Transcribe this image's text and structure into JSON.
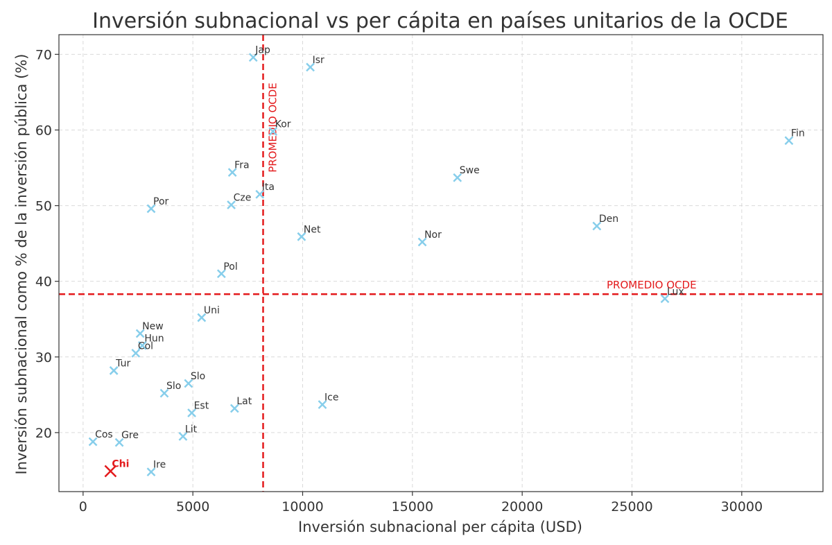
{
  "chart_data": {
    "type": "scatter",
    "title": "Inversión subnacional vs per cápita en países unitarios de la OCDE",
    "xlabel": "Inversión subnacional per cápita (USD)",
    "ylabel": "Inversión subnacional como % de la inversión pública (%)",
    "xlim": [
      -1100,
      33700
    ],
    "ylim": [
      12.2,
      72.6
    ],
    "xticks": [
      0,
      5000,
      10000,
      15000,
      20000,
      25000,
      30000
    ],
    "yticks": [
      20,
      30,
      40,
      50,
      60,
      70
    ],
    "grid": true,
    "marker_color": "#87CEEB",
    "highlight_color": "#e31a1c",
    "points": [
      {
        "label": "Jap",
        "x": 7750,
        "y": 69.6
      },
      {
        "label": "Isr",
        "x": 10350,
        "y": 68.3
      },
      {
        "label": "Kor",
        "x": 8650,
        "y": 59.8
      },
      {
        "label": "Fin",
        "x": 32150,
        "y": 58.6
      },
      {
        "label": "Fra",
        "x": 6800,
        "y": 54.4
      },
      {
        "label": "Swe",
        "x": 17050,
        "y": 53.7
      },
      {
        "label": "Ita",
        "x": 8050,
        "y": 51.5
      },
      {
        "label": "Cze",
        "x": 6750,
        "y": 50.1
      },
      {
        "label": "Por",
        "x": 3100,
        "y": 49.6
      },
      {
        "label": "Den",
        "x": 23400,
        "y": 47.3
      },
      {
        "label": "Net",
        "x": 9950,
        "y": 45.9
      },
      {
        "label": "Nor",
        "x": 15450,
        "y": 45.2
      },
      {
        "label": "Pol",
        "x": 6300,
        "y": 41.0
      },
      {
        "label": "Lux",
        "x": 26500,
        "y": 37.7
      },
      {
        "label": "Uni",
        "x": 5400,
        "y": 35.2
      },
      {
        "label": "New",
        "x": 2600,
        "y": 33.1
      },
      {
        "label": "Hun",
        "x": 2700,
        "y": 31.5
      },
      {
        "label": "Col",
        "x": 2400,
        "y": 30.5
      },
      {
        "label": "Tur",
        "x": 1400,
        "y": 28.2
      },
      {
        "label": "Slo",
        "x": 4800,
        "y": 26.5
      },
      {
        "label": "Slo",
        "x": 3700,
        "y": 25.2
      },
      {
        "label": "Ice",
        "x": 10900,
        "y": 23.7
      },
      {
        "label": "Lat",
        "x": 6900,
        "y": 23.2
      },
      {
        "label": "Est",
        "x": 4950,
        "y": 22.6
      },
      {
        "label": "Lit",
        "x": 4550,
        "y": 19.5
      },
      {
        "label": "Cos",
        "x": 450,
        "y": 18.8
      },
      {
        "label": "Gre",
        "x": 1650,
        "y": 18.7
      },
      {
        "label": "Ire",
        "x": 3100,
        "y": 14.8
      }
    ],
    "highlight_points": [
      {
        "label": "Chi",
        "x": 1250,
        "y": 14.9
      }
    ],
    "reference_lines": {
      "vertical": {
        "x": 8200,
        "label": "PROMEDIO OCDE"
      },
      "horizontal": {
        "y": 38.3,
        "label": "PROMEDIO OCDE"
      }
    }
  }
}
